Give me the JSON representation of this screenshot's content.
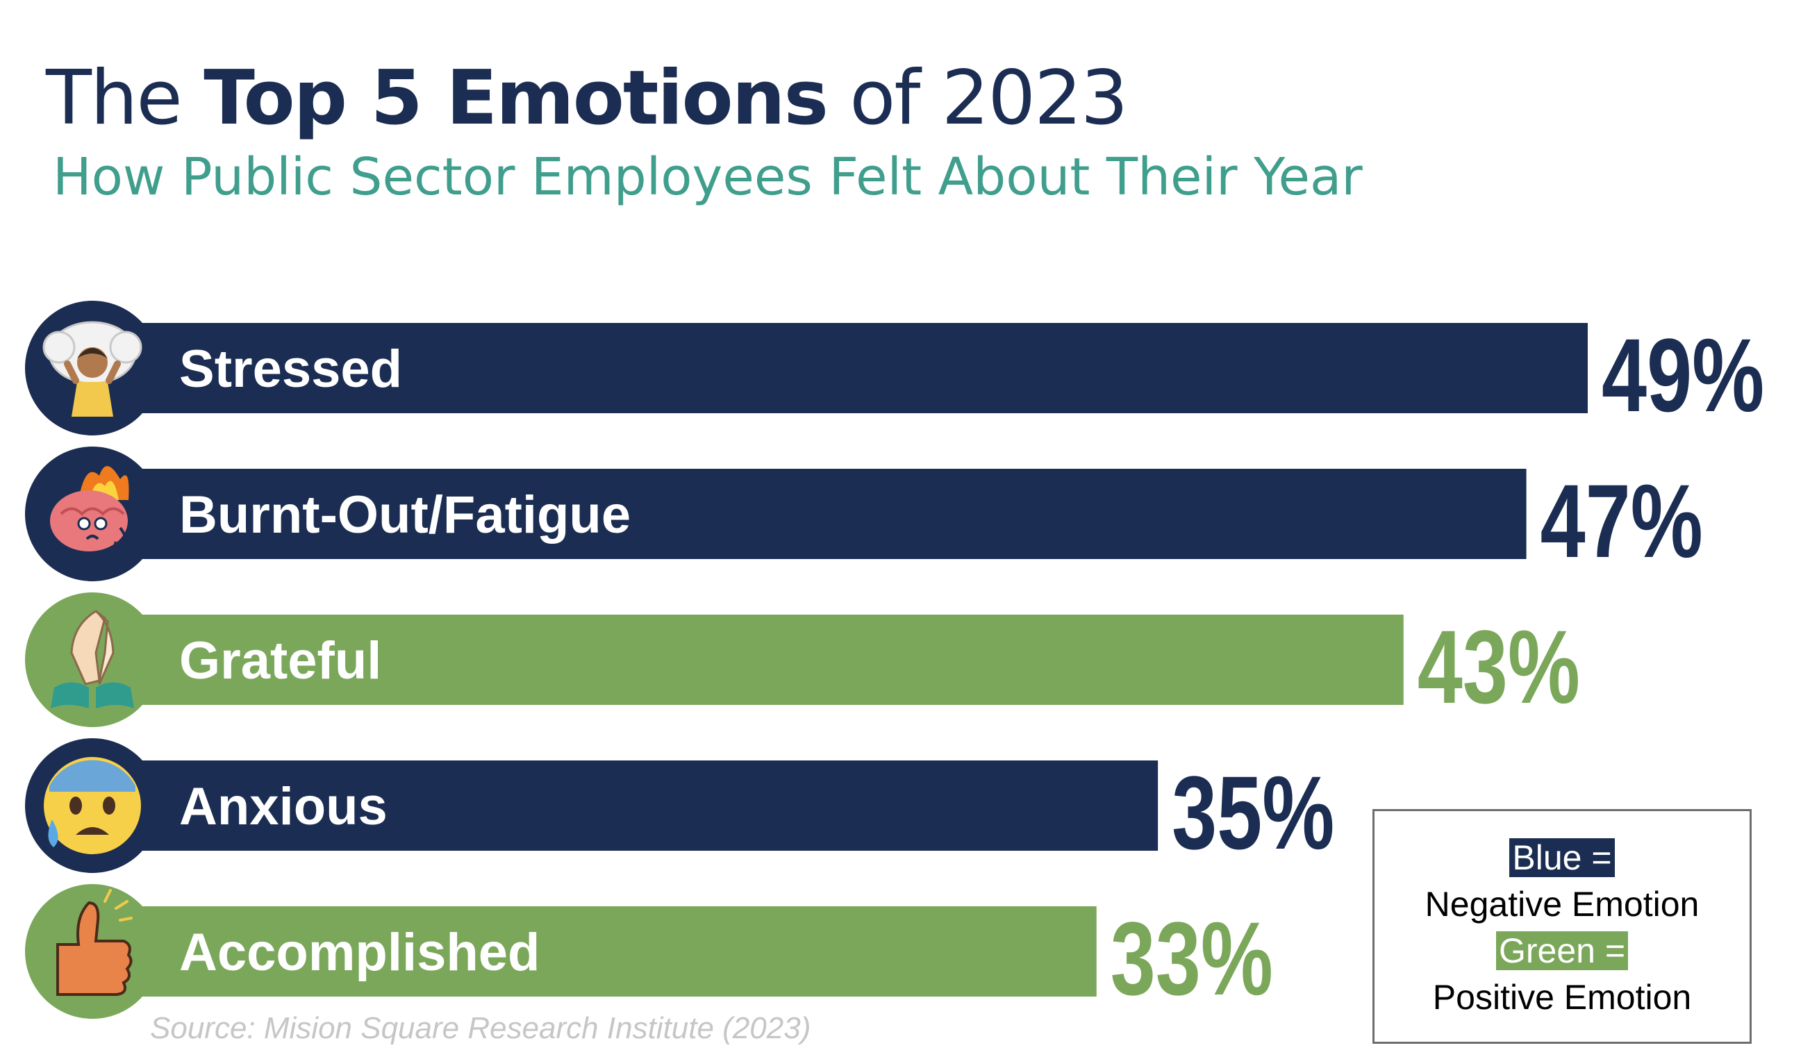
{
  "title": {
    "prefix": "The ",
    "bold": "Top 5 Emotions",
    "suffix": " of 2023"
  },
  "subtitle": "How Public Sector Employees Felt About Their Year",
  "colors": {
    "negative": "#1b2d52",
    "positive": "#7ba75a"
  },
  "chart_data": {
    "type": "bar",
    "orientation": "horizontal",
    "title": "The Top 5 Emotions of 2023",
    "subtitle": "How Public Sector Employees Felt About Their Year",
    "categories": [
      "Stressed",
      "Burnt-Out/Fatigue",
      "Grateful",
      "Anxious",
      "Accomplished"
    ],
    "values": [
      49,
      47,
      43,
      35,
      33
    ],
    "value_labels": [
      "49%",
      "47%",
      "43%",
      "35%",
      "33%"
    ],
    "sentiment": [
      "negative",
      "negative",
      "positive",
      "negative",
      "positive"
    ],
    "icons": [
      "stressed-person-icon",
      "burning-brain-icon",
      "praying-hands-icon",
      "anxious-face-icon",
      "thumbs-up-icon"
    ],
    "unit": "%",
    "xlim": [
      0,
      49
    ],
    "grid": false
  },
  "legend": {
    "blue_label": "Blue =",
    "negative_label": "Negative Emotion",
    "green_label": "Green =",
    "positive_label": "Positive Emotion",
    "placement": "bottom-right"
  },
  "source": "Source: Mision Square Research Institute (2023)"
}
